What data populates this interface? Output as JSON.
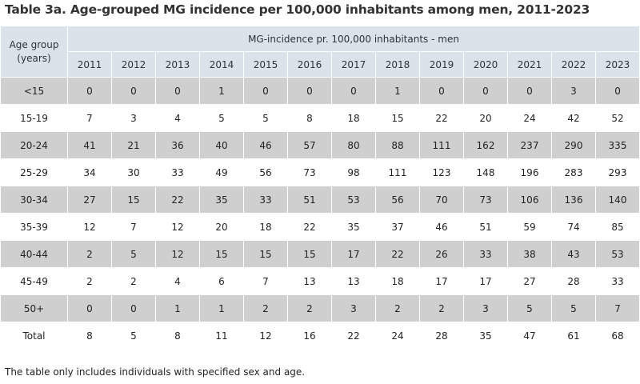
{
  "title": "Table 3a. Age-grouped MG incidence per 100,000 inhabitants among men, 2011-2023",
  "age_header_line1": "Age group",
  "age_header_line2": "(years)",
  "group_header": "MG-incidence pr. 100,000 inhabitants - men",
  "years": [
    "2011",
    "2012",
    "2013",
    "2014",
    "2015",
    "2016",
    "2017",
    "2018",
    "2019",
    "2020",
    "2021",
    "2022",
    "2023"
  ],
  "rows": [
    {
      "age": "<15",
      "values": [
        "0",
        "0",
        "0",
        "1",
        "0",
        "0",
        "0",
        "1",
        "0",
        "0",
        "0",
        "3",
        "0"
      ]
    },
    {
      "age": "15-19",
      "values": [
        "7",
        "3",
        "4",
        "5",
        "5",
        "8",
        "18",
        "15",
        "22",
        "20",
        "24",
        "42",
        "52"
      ]
    },
    {
      "age": "20-24",
      "values": [
        "41",
        "21",
        "36",
        "40",
        "46",
        "57",
        "80",
        "88",
        "111",
        "162",
        "237",
        "290",
        "335"
      ]
    },
    {
      "age": "25-29",
      "values": [
        "34",
        "30",
        "33",
        "49",
        "56",
        "73",
        "98",
        "111",
        "123",
        "148",
        "196",
        "283",
        "293"
      ]
    },
    {
      "age": "30-34",
      "values": [
        "27",
        "15",
        "22",
        "35",
        "33",
        "51",
        "53",
        "56",
        "70",
        "73",
        "106",
        "136",
        "140"
      ]
    },
    {
      "age": "35-39",
      "values": [
        "12",
        "7",
        "12",
        "20",
        "18",
        "22",
        "35",
        "37",
        "46",
        "51",
        "59",
        "74",
        "85"
      ]
    },
    {
      "age": "40-44",
      "values": [
        "2",
        "5",
        "12",
        "15",
        "15",
        "15",
        "17",
        "22",
        "26",
        "33",
        "38",
        "43",
        "53"
      ]
    },
    {
      "age": "45-49",
      "values": [
        "2",
        "2",
        "4",
        "6",
        "7",
        "13",
        "13",
        "18",
        "17",
        "17",
        "27",
        "28",
        "33"
      ]
    },
    {
      "age": "50+",
      "values": [
        "0",
        "0",
        "1",
        "1",
        "2",
        "2",
        "3",
        "2",
        "2",
        "3",
        "5",
        "5",
        "7"
      ]
    },
    {
      "age": "Total",
      "values": [
        "8",
        "5",
        "8",
        "11",
        "12",
        "16",
        "22",
        "24",
        "28",
        "35",
        "47",
        "61",
        "68"
      ]
    }
  ],
  "footnote": "The table only includes individuals with specified sex and age.",
  "colors": {
    "header_bg": "#d9e3e9",
    "shade_row": "#cfcfcf"
  }
}
